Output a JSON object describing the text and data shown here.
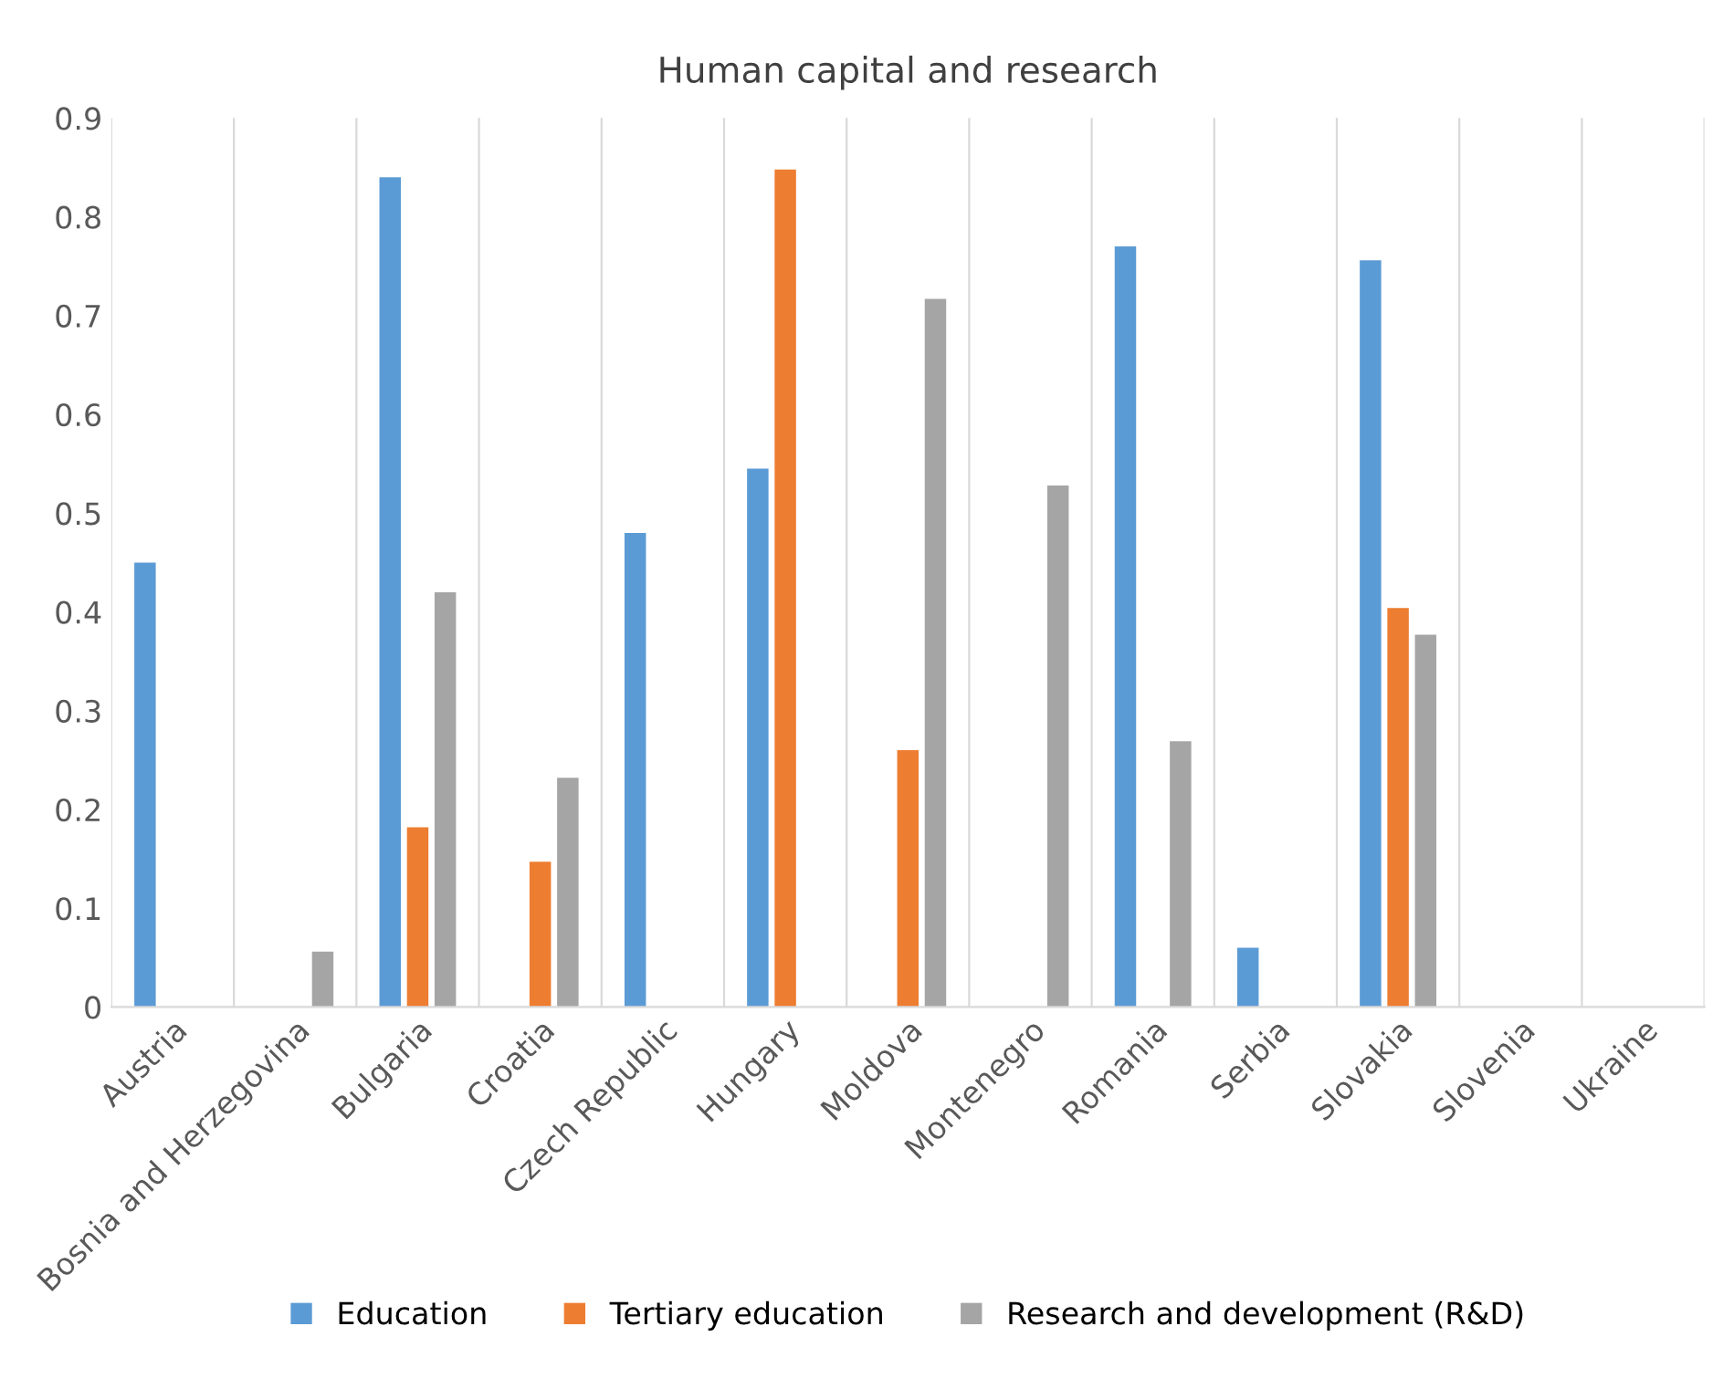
{
  "chart_data": {
    "type": "bar",
    "title": "Human capital and research",
    "categories": [
      "Austria",
      "Bosnia and Herzegovina",
      "Bulgaria",
      "Croatia",
      "Czech Republic",
      "Hungary",
      "Moldova",
      "Montenegro",
      "Romania",
      "Serbia",
      "Slovakia",
      "Slovenia",
      "Ukraine"
    ],
    "series": [
      {
        "name": "Education",
        "color": "#5b9bd5",
        "values": [
          0.45,
          null,
          0.84,
          null,
          0.48,
          0.545,
          null,
          null,
          0.77,
          0.06,
          0.756,
          null,
          null
        ]
      },
      {
        "name": "Tertiary education",
        "color": "#ed7d31",
        "values": [
          null,
          null,
          0.182,
          0.147,
          null,
          0.848,
          0.26,
          null,
          null,
          null,
          0.404,
          null,
          null
        ]
      },
      {
        "name": "Research and development (R&D)",
        "color": "#a5a5a5",
        "values": [
          null,
          0.056,
          0.42,
          0.232,
          null,
          null,
          0.717,
          0.528,
          0.269,
          null,
          0.377,
          null,
          null
        ]
      }
    ],
    "ylim": [
      0,
      0.9
    ],
    "yticks": [
      0,
      0.1,
      0.2,
      0.3,
      0.4,
      0.5,
      0.6,
      0.7,
      0.8,
      0.9
    ],
    "grid": "x",
    "legend": "bottom"
  }
}
